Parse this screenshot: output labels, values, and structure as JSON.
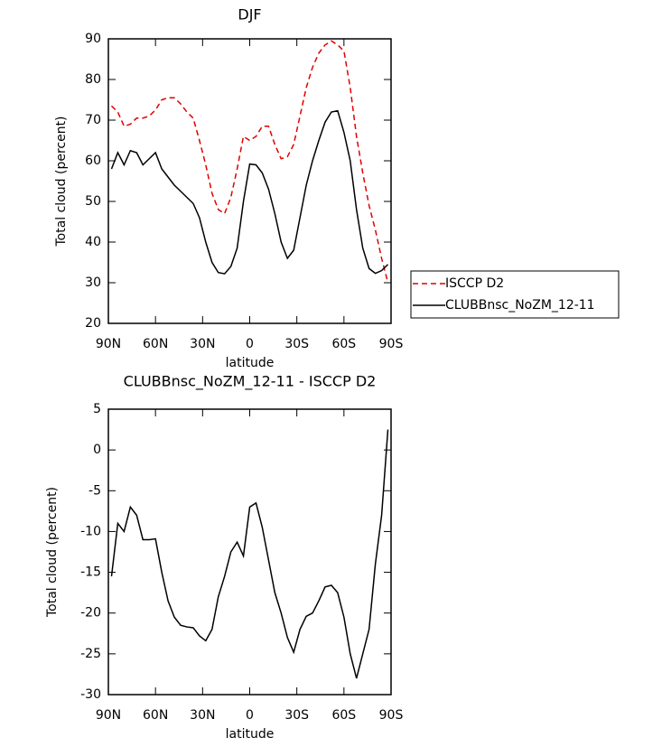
{
  "chart_data": [
    {
      "type": "line",
      "title": "DJF",
      "xlabel": "latitude",
      "ylabel": "Total cloud (percent)",
      "x": [
        88,
        84,
        80,
        76,
        72,
        68,
        64,
        60,
        56,
        52,
        48,
        44,
        40,
        36,
        32,
        28,
        24,
        20,
        16,
        12,
        8,
        4,
        0,
        -4,
        -8,
        -12,
        -16,
        -20,
        -24,
        -28,
        -32,
        -36,
        -40,
        -44,
        -48,
        -52,
        -56,
        -60,
        -64,
        -68,
        -72,
        -76,
        -80,
        -84,
        -88
      ],
      "xlim": [
        90,
        -90
      ],
      "xticks": [
        {
          "value": 90,
          "label": "90N"
        },
        {
          "value": 60,
          "label": "60N"
        },
        {
          "value": 30,
          "label": "30N"
        },
        0,
        {
          "value": -30,
          "label": "30S"
        },
        {
          "value": -60,
          "label": "60S"
        },
        {
          "value": -90,
          "label": "90S"
        }
      ],
      "ylim": [
        20,
        90
      ],
      "yticks": [
        20,
        30,
        40,
        50,
        60,
        70,
        80,
        90
      ],
      "legend": "outside-right",
      "series": [
        {
          "name": "ISCCP D2",
          "color": "#e00000",
          "linestyle": "dashed",
          "values": [
            73.5,
            72,
            68.5,
            69,
            70.5,
            70.5,
            71,
            72.5,
            75,
            75.5,
            75.5,
            74,
            72,
            70.5,
            65,
            59,
            52,
            48,
            47,
            51,
            58,
            66,
            65,
            66,
            68.5,
            68.5,
            64,
            60.5,
            61,
            64,
            71,
            78,
            83,
            86.5,
            88.5,
            89.5,
            88.5,
            87,
            78,
            66,
            57,
            49,
            43,
            36,
            30
          ]
        },
        {
          "name": "CLUBBnsc_NoZM_12-11",
          "color": "#000000",
          "linestyle": "solid",
          "values": [
            58,
            62,
            59,
            62.5,
            62,
            59,
            60.5,
            62,
            58,
            56,
            54,
            52.5,
            51,
            49.5,
            46,
            40,
            35,
            32.5,
            32.2,
            34,
            38.5,
            50,
            59.2,
            59,
            57,
            53,
            47,
            40,
            36,
            38,
            46,
            54,
            60,
            65,
            69.5,
            72,
            72.3,
            67,
            60,
            48,
            38.5,
            33.5,
            32.3,
            33,
            34.5
          ]
        }
      ]
    },
    {
      "type": "line",
      "title": "CLUBBnsc_NoZM_12-11 - ISCCP D2",
      "xlabel": "latitude",
      "ylabel": "Total cloud (percent)",
      "x": [
        88,
        84,
        80,
        76,
        72,
        68,
        64,
        60,
        56,
        52,
        48,
        44,
        40,
        36,
        32,
        28,
        24,
        20,
        16,
        12,
        8,
        4,
        0,
        -4,
        -8,
        -12,
        -16,
        -20,
        -24,
        -28,
        -32,
        -36,
        -40,
        -44,
        -48,
        -52,
        -56,
        -60,
        -64,
        -68,
        -72,
        -76,
        -80,
        -84,
        -88
      ],
      "xlim": [
        90,
        -90
      ],
      "xticks": [
        {
          "value": 90,
          "label": "90N"
        },
        {
          "value": 60,
          "label": "60N"
        },
        {
          "value": 30,
          "label": "30N"
        },
        0,
        {
          "value": -30,
          "label": "30S"
        },
        {
          "value": -60,
          "label": "60S"
        },
        {
          "value": -90,
          "label": "90S"
        }
      ],
      "ylim": [
        -30,
        5
      ],
      "yticks": [
        -30,
        -25,
        -20,
        -15,
        -10,
        -5,
        0,
        5
      ],
      "series": [
        {
          "color": "#000000",
          "linestyle": "solid",
          "values": [
            -15.5,
            -9,
            -10,
            -7,
            -8,
            -11,
            -11,
            -10.9,
            -15,
            -18.5,
            -20.5,
            -21.5,
            -21.7,
            -21.8,
            -22.8,
            -23.4,
            -22,
            -18,
            -15.5,
            -12.5,
            -11.3,
            -13,
            -7,
            -6.5,
            -9.5,
            -13.5,
            -17.5,
            -20,
            -23,
            -24.8,
            -22,
            -20.4,
            -20,
            -18.5,
            -16.8,
            -16.6,
            -17.5,
            -20.5,
            -25,
            -28,
            -25,
            -22,
            -14,
            -8,
            2.5
          ]
        }
      ]
    }
  ]
}
